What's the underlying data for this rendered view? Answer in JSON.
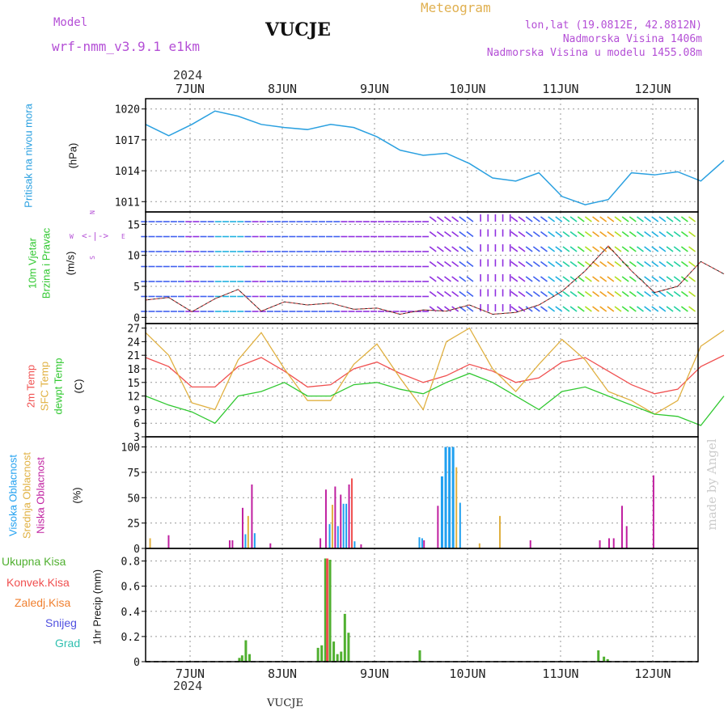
{
  "header": {
    "model_label": "Model",
    "model_name": "wrf-nmm_v3.9.1  e1km",
    "station": "VUCJE",
    "meteogram": "Meteogram",
    "lonlat": "lon,lat (19.0812E, 42.8812N)",
    "altitude": "Nadmorska Visina 1406m",
    "model_altitude": "Nadmorska Visina u modelu 1455.08m",
    "year_top": "2024",
    "year_bottom": "2024",
    "footer_station": "VUCJE",
    "watermark": "made by Angel"
  },
  "axis_dates": [
    "7JUN",
    "8JUN",
    "9JUN",
    "10JUN",
    "11JUN",
    "12JUN"
  ],
  "panel_labels": {
    "pressure": {
      "name": "Pritisak na nivou mora",
      "unit": "(hPa)"
    },
    "wind": {
      "name1": "10m Vjetar",
      "name2": "Brzina i Pravac",
      "unit": "(m/s)",
      "compass_n": "N",
      "compass_e": "E",
      "compass_w": "W",
      "compass_s": "S"
    },
    "temp": {
      "t2m": "2m Temp",
      "sfc": "SFC Temp",
      "dew": "dewpt Temp",
      "unit": "(C)"
    },
    "cloud": {
      "high": "Visoka Oblacnost",
      "mid": "Srednja Oblacnost",
      "low": "Niska Oblacnost",
      "unit": "(%)"
    },
    "precip": {
      "total": "Ukupna Kisa",
      "conv": "Konvek.Kisa",
      "frz": "Zaledj.Kisa",
      "snow": "Snijeg",
      "hail": "Grad",
      "unit": "1hr Precip (mm)"
    }
  },
  "colors": {
    "pressure": "#2aa0e0",
    "t2m": "#f05050",
    "sfc": "#e0b040",
    "dew": "#30c830",
    "high": "#20a0f0",
    "mid": "#e0b040",
    "low": "#c020a0",
    "total": "#50b030",
    "conv": "#f05050",
    "frz": "#f08030",
    "snow": "#5050e0",
    "hail": "#30c0b0",
    "purple": "#b44fd6"
  },
  "chart_data": [
    {
      "type": "line",
      "title": "Pritisak na nivou mora",
      "ylabel": "(hPa)",
      "ylim": [
        1010,
        1021
      ],
      "yticks": [
        1011,
        1014,
        1017,
        1020
      ],
      "x_days": [
        0,
        0.25,
        0.5,
        0.75,
        1.0,
        1.25,
        1.5,
        1.75,
        2.0,
        2.25,
        2.5,
        2.75,
        3.0,
        3.25,
        3.5,
        3.75,
        4.0,
        4.25,
        4.5,
        4.75,
        5.0,
        5.25,
        5.5,
        5.75,
        6.0,
        6.25
      ],
      "series": [
        {
          "values": [
            1018.5,
            1017.4,
            1018.5,
            1019.8,
            1019.3,
            1018.5,
            1018.2,
            1018.0,
            1018.5,
            1018.2,
            1017.3,
            1016.0,
            1015.5,
            1015.7,
            1014.7,
            1013.3,
            1013.0,
            1013.8,
            1011.5,
            1010.7,
            1011.2,
            1013.8,
            1013.6,
            1013.9,
            1013.0,
            1015.0
          ]
        }
      ]
    },
    {
      "type": "line",
      "title": "10m Vjetar Brzina i Pravac",
      "ylabel": "(m/s)",
      "ylim": [
        -1,
        17
      ],
      "yticks": [
        0,
        5,
        10,
        15
      ],
      "x_days": [
        0,
        0.25,
        0.5,
        0.75,
        1.0,
        1.25,
        1.5,
        1.75,
        2.0,
        2.25,
        2.5,
        2.75,
        3.0,
        3.25,
        3.5,
        3.75,
        4.0,
        4.25,
        4.5,
        4.75,
        5.0,
        5.25,
        5.5,
        5.75,
        6.0,
        6.25
      ],
      "series": [
        {
          "name": "speed",
          "values": [
            2.8,
            3.2,
            0.9,
            3.0,
            4.5,
            1.0,
            2.5,
            2.0,
            2.3,
            1.3,
            1.5,
            0.5,
            1.2,
            1.0,
            2.0,
            0.5,
            0.8,
            2.0,
            4.2,
            7.5,
            11.5,
            7.5,
            4.0,
            5.0,
            9.0,
            7.0
          ]
        }
      ]
    },
    {
      "type": "line",
      "title": "Temperatures",
      "ylabel": "(C)",
      "ylim": [
        3,
        28
      ],
      "yticks": [
        3,
        6,
        9,
        12,
        15,
        18,
        21,
        24,
        27
      ],
      "x_days": [
        0,
        0.25,
        0.5,
        0.75,
        1.0,
        1.25,
        1.5,
        1.75,
        2.0,
        2.25,
        2.5,
        2.75,
        3.0,
        3.25,
        3.5,
        3.75,
        4.0,
        4.25,
        4.5,
        4.75,
        5.0,
        5.25,
        5.5,
        5.75,
        6.0,
        6.25
      ],
      "series": [
        {
          "name": "2m Temp",
          "values": [
            20.5,
            18.5,
            14.0,
            14.0,
            18.5,
            20.5,
            17.5,
            14.0,
            14.5,
            18.0,
            19.5,
            17.0,
            15.0,
            16.5,
            19.0,
            17.5,
            15.0,
            16.0,
            19.5,
            20.5,
            17.5,
            14.5,
            12.5,
            13.5,
            18.5,
            21.0
          ]
        },
        {
          "name": "SFC Temp",
          "values": [
            26.0,
            21.0,
            10.5,
            9.0,
            20.0,
            26.0,
            18.0,
            11.0,
            11.0,
            19.0,
            23.5,
            16.0,
            9.0,
            24.0,
            27.0,
            18.0,
            13.0,
            19.0,
            24.5,
            20.0,
            13.0,
            11.0,
            8.0,
            11.0,
            23.0,
            26.5
          ]
        },
        {
          "name": "dewpt Temp",
          "values": [
            12.0,
            10.0,
            8.5,
            6.0,
            12.0,
            13.0,
            15.0,
            12.0,
            12.0,
            14.5,
            15.0,
            13.5,
            12.5,
            15.0,
            17.0,
            15.0,
            12.0,
            9.0,
            13.0,
            14.0,
            12.0,
            10.0,
            8.0,
            7.5,
            5.5,
            12.0
          ]
        }
      ]
    },
    {
      "type": "bar",
      "title": "Oblacnost",
      "ylabel": "(%)",
      "ylim": [
        0,
        110
      ],
      "yticks": [
        0,
        25,
        50,
        75,
        100
      ],
      "bars": [
        {
          "s": "mid",
          "x": 0.04,
          "v": 10
        },
        {
          "s": "low",
          "x": 0.24,
          "v": 13
        },
        {
          "s": "low",
          "x": 0.9,
          "v": 8
        },
        {
          "s": "low",
          "x": 0.93,
          "v": 8
        },
        {
          "s": "low",
          "x": 1.04,
          "v": 40
        },
        {
          "s": "high",
          "x": 1.07,
          "v": 14
        },
        {
          "s": "mid",
          "x": 1.1,
          "v": 32
        },
        {
          "s": "low",
          "x": 1.14,
          "v": 63
        },
        {
          "s": "high",
          "x": 1.17,
          "v": 15
        },
        {
          "s": "low",
          "x": 1.34,
          "v": 5
        },
        {
          "s": "low",
          "x": 1.88,
          "v": 10
        },
        {
          "s": "low",
          "x": 1.94,
          "v": 58
        },
        {
          "s": "high",
          "x": 1.98,
          "v": 24
        },
        {
          "s": "mid",
          "x": 2.01,
          "v": 43
        },
        {
          "s": "low",
          "x": 2.04,
          "v": 61
        },
        {
          "s": "high",
          "x": 2.07,
          "v": 22
        },
        {
          "s": "low",
          "x": 2.1,
          "v": 53
        },
        {
          "s": "high",
          "x": 2.13,
          "v": 44
        },
        {
          "s": "high",
          "x": 2.16,
          "v": 44
        },
        {
          "s": "low",
          "x": 2.19,
          "v": 63
        },
        {
          "s": "conv",
          "x": 2.22,
          "v": 69
        },
        {
          "s": "high",
          "x": 2.25,
          "v": 7
        },
        {
          "s": "low",
          "x": 2.32,
          "v": 4
        },
        {
          "s": "high",
          "x": 2.95,
          "v": 11
        },
        {
          "s": "high",
          "x": 2.98,
          "v": 10
        },
        {
          "s": "low",
          "x": 3.0,
          "v": 8
        },
        {
          "s": "low",
          "x": 3.15,
          "v": 42
        },
        {
          "s": "high",
          "x": 3.19,
          "v": 71
        },
        {
          "s": "high",
          "x": 3.23,
          "v": 100
        },
        {
          "s": "high",
          "x": 3.27,
          "v": 100
        },
        {
          "s": "high",
          "x": 3.31,
          "v": 100
        },
        {
          "s": "mid",
          "x": 3.35,
          "v": 80
        },
        {
          "s": "high",
          "x": 3.39,
          "v": 45
        },
        {
          "s": "mid",
          "x": 3.6,
          "v": 5
        },
        {
          "s": "mid",
          "x": 3.82,
          "v": 32
        },
        {
          "s": "low",
          "x": 4.15,
          "v": 8
        },
        {
          "s": "low",
          "x": 4.9,
          "v": 8
        },
        {
          "s": "low",
          "x": 5.0,
          "v": 10
        },
        {
          "s": "low",
          "x": 5.05,
          "v": 10
        },
        {
          "s": "low",
          "x": 5.14,
          "v": 42
        },
        {
          "s": "low",
          "x": 5.19,
          "v": 22
        },
        {
          "s": "low",
          "x": 5.48,
          "v": 72
        }
      ]
    },
    {
      "type": "bar",
      "title": "1hr Precip",
      "ylabel": "1hr Precip (mm)",
      "ylim": [
        0,
        0.9
      ],
      "yticks": [
        0,
        0.2,
        0.4,
        0.6,
        0.8
      ],
      "bars": [
        {
          "s": "total",
          "x": 1.0,
          "v": 0.03
        },
        {
          "s": "total",
          "x": 1.03,
          "v": 0.05
        },
        {
          "s": "total",
          "x": 1.07,
          "v": 0.17
        },
        {
          "s": "total",
          "x": 1.11,
          "v": 0.06
        },
        {
          "s": "total",
          "x": 1.85,
          "v": 0.11
        },
        {
          "s": "total",
          "x": 1.89,
          "v": 0.13
        },
        {
          "s": "total",
          "x": 1.93,
          "v": 0.82
        },
        {
          "s": "conv",
          "x": 1.95,
          "v": 0.82
        },
        {
          "s": "total",
          "x": 1.98,
          "v": 0.81
        },
        {
          "s": "total",
          "x": 2.02,
          "v": 0.16
        },
        {
          "s": "total",
          "x": 2.06,
          "v": 0.06
        },
        {
          "s": "total",
          "x": 2.1,
          "v": 0.08
        },
        {
          "s": "total",
          "x": 2.14,
          "v": 0.38
        },
        {
          "s": "total",
          "x": 2.18,
          "v": 0.23
        },
        {
          "s": "total",
          "x": 2.95,
          "v": 0.09
        },
        {
          "s": "total",
          "x": 4.88,
          "v": 0.09
        },
        {
          "s": "total",
          "x": 4.94,
          "v": 0.04
        },
        {
          "s": "total",
          "x": 4.98,
          "v": 0.02
        }
      ]
    }
  ]
}
